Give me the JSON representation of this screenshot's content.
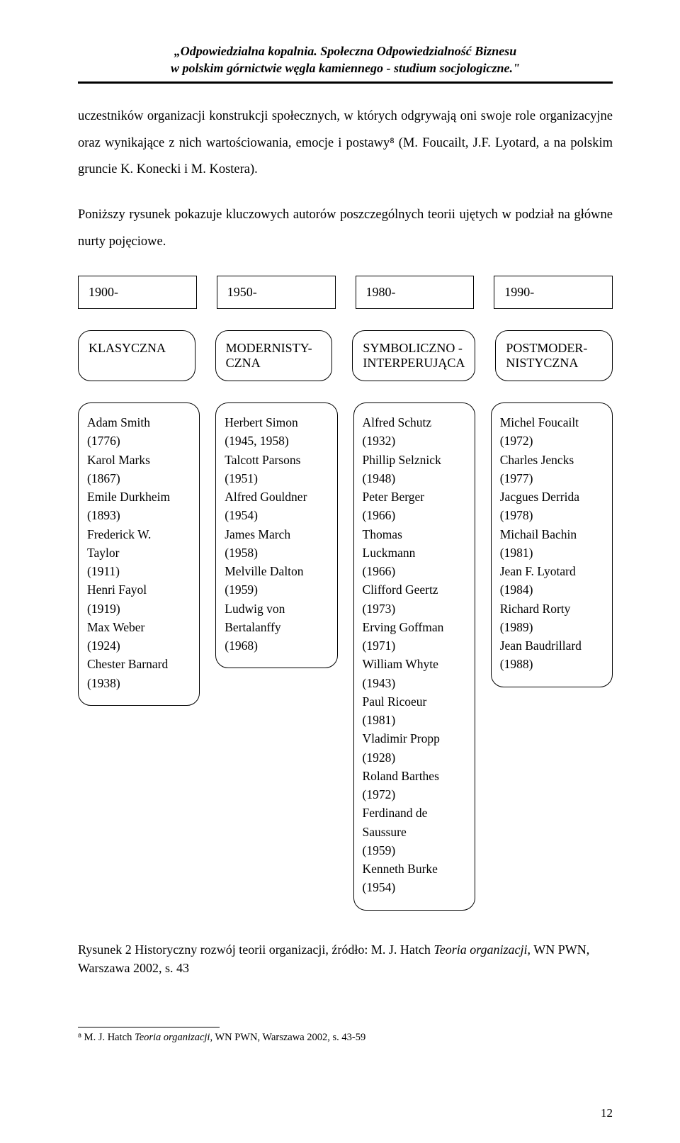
{
  "header": {
    "line1": "„Odpowiedzialna kopalnia. Społeczna Odpowiedzialność Biznesu",
    "line2": "w polskim górnictwie węgla kamiennego - studium socjologiczne.\""
  },
  "para1": "uczestników organizacji konstrukcji społecznych, w których odgrywają oni swoje role organizacyjne oraz wynikające z nich wartościowania, emocje i postawy⁸ (M. Foucailt, J.F. Lyotard, a na polskim gruncie K. Konecki i M. Kostera).",
  "para2": "Poniższy rysunek pokazuje kluczowych autorów poszczególnych teorii ujętych w podział na główne nurty pojęciowe.",
  "periods": [
    "1900-",
    "1950-",
    "1980-",
    "1990-"
  ],
  "categories": [
    "KLASYCZNA",
    "MODERNISTY-CZNA",
    "SYMBOLICZNO - INTERPERUJĄCA",
    "POSTMODER-NISTYCZNA"
  ],
  "columns": [
    {
      "items": [
        "Adam Smith",
        "(1776)",
        "Karol Marks",
        "(1867)",
        "Emile Durkheim",
        "(1893)",
        "Frederick W.",
        "Taylor",
        "(1911)",
        "Henri Fayol",
        "(1919)",
        "Max Weber",
        "(1924)",
        "Chester Barnard",
        "(1938)"
      ]
    },
    {
      "items": [
        "Herbert Simon",
        "(1945, 1958)",
        "Talcott Parsons",
        "(1951)",
        "Alfred Gouldner",
        "(1954)",
        "James March",
        "(1958)",
        "Melville Dalton",
        "(1959)",
        "Ludwig von",
        "Bertalanffy",
        "(1968)"
      ]
    },
    {
      "items": [
        "Alfred Schutz",
        "(1932)",
        "Phillip Selznick",
        "(1948)",
        "Peter Berger",
        "(1966)",
        "Thomas",
        "Luckmann",
        "(1966)",
        "Clifford Geertz",
        "(1973)",
        "Erving Goffman",
        "(1971)",
        "William Whyte",
        "(1943)",
        "Paul Ricoeur",
        "(1981)",
        "Vladimir Propp",
        "(1928)",
        "Roland Barthes",
        "(1972)",
        "Ferdinand de",
        "Saussure",
        "(1959)",
        "Kenneth Burke",
        "(1954)"
      ]
    },
    {
      "items": [
        "Michel Foucailt",
        "(1972)",
        "Charles Jencks",
        "(1977)",
        "Jacgues Derrida",
        "(1978)",
        "Michail Bachin",
        "(1981)",
        "Jean F. Lyotard",
        "(1984)",
        "Richard Rorty",
        "(1989)",
        "Jean Baudrillard",
        "(1988)"
      ]
    }
  ],
  "caption_prefix": "Rysunek 2 Historyczny rozwój teorii organizacji, źródło: M. J. Hatch ",
  "caption_italic": "Teoria organizacji",
  "caption_suffix": ", WN PWN, Warszawa 2002, s. 43",
  "footnote_prefix": "⁸ M. J. Hatch ",
  "footnote_italic": "Teoria organizacji",
  "footnote_suffix": ", WN PWN, Warszawa 2002, s. 43-59",
  "page_number": "12"
}
